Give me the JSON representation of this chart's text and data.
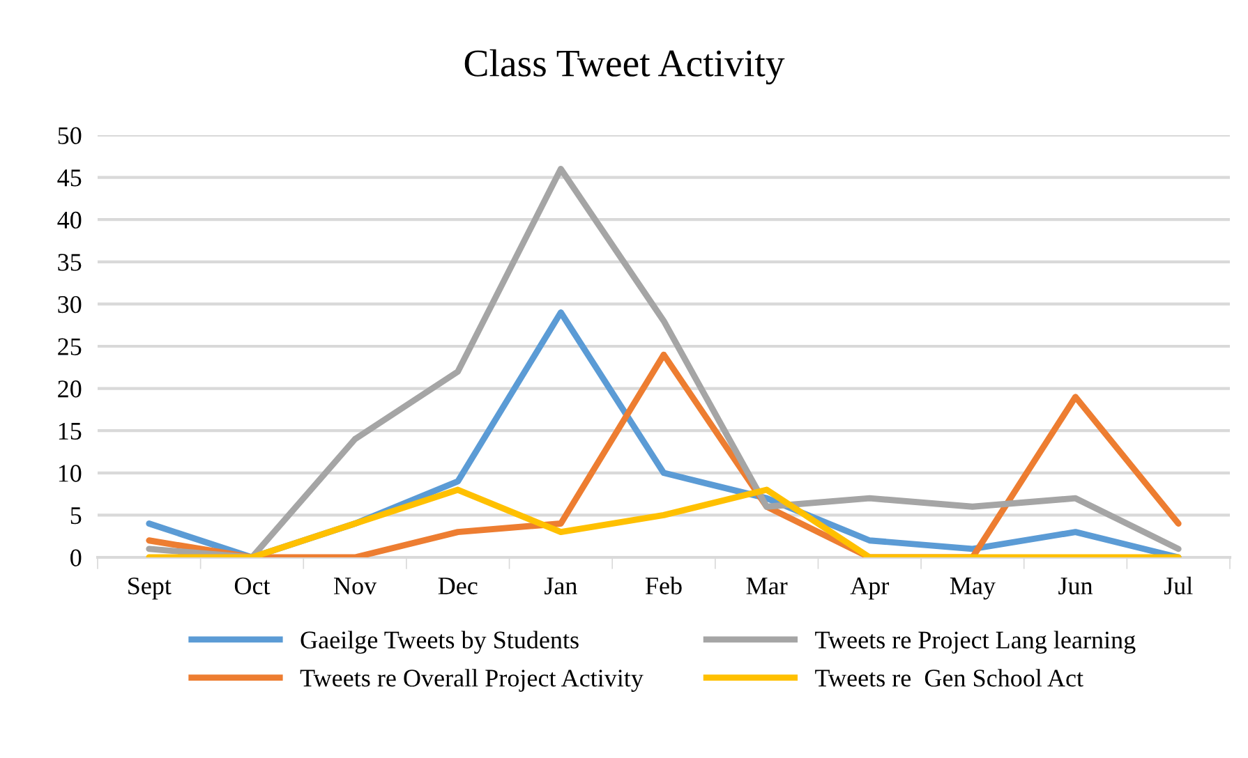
{
  "chart_data": {
    "type": "line",
    "title": "Class Tweet Activity",
    "categories": [
      "Sept",
      "Oct",
      "Nov",
      "Dec",
      "Jan",
      "Feb",
      "Mar",
      "Apr",
      "May",
      "Jun",
      "Jul"
    ],
    "series": [
      {
        "name": "Gaeilge Tweets by Students",
        "color": "#5b9bd5",
        "values": [
          4,
          0,
          4,
          9,
          29,
          10,
          7,
          2,
          1,
          3,
          0
        ]
      },
      {
        "name": "Tweets re Overall Project Activity",
        "color": "#ed7d31",
        "values": [
          2,
          0,
          0,
          3,
          4,
          24,
          6,
          0,
          0,
          19,
          4
        ]
      },
      {
        "name": "Tweets re Project Lang learning",
        "color": "#a5a5a5",
        "values": [
          1,
          0,
          14,
          22,
          46,
          28,
          6,
          7,
          6,
          7,
          1
        ]
      },
      {
        "name": "Tweets re  Gen School Act",
        "color": "#ffc000",
        "values": [
          0,
          0,
          4,
          8,
          3,
          5,
          8,
          0,
          0,
          0,
          0
        ]
      }
    ],
    "ylim": [
      0,
      50
    ],
    "yticks": [
      0,
      5,
      10,
      15,
      20,
      25,
      30,
      35,
      40,
      45,
      50
    ],
    "grid": "y",
    "legend": "bottom",
    "marker": "none",
    "line_style": "solid"
  }
}
